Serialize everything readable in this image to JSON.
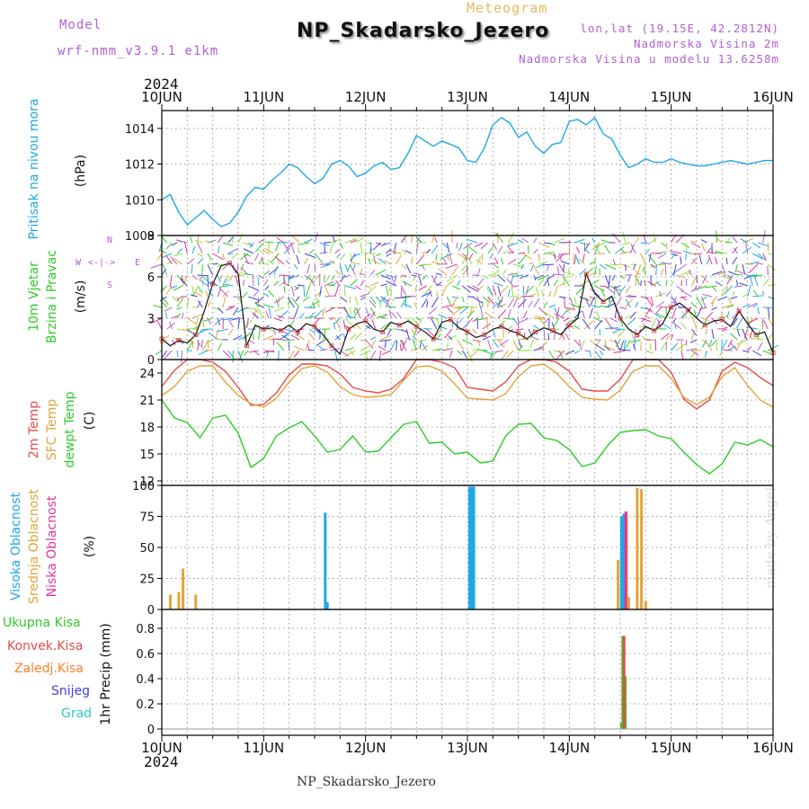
{
  "header": {
    "model_label": "Model",
    "model_value": "wrf-nmm_v3.9.1 e1km",
    "kind": "Meteogram",
    "station": "NP_Skadarsko_Jezero",
    "lonlat": "lon,lat (19.15E, 42.2812N)",
    "alt": "Nadmorska Visina 2m",
    "alt_model": "Nadmorska Visina u modelu 13.6258m"
  },
  "footer": {
    "station": "NP_Skadarsko_Jezero",
    "made_by": "made by Angel"
  },
  "years": {
    "top": "2024",
    "bottom": "2024"
  },
  "colors": {
    "pressure": "#1ea8e6",
    "t2m": "#e84a4a",
    "sfc": "#e2a43a",
    "dew": "#2ecc28",
    "high_cloud": "#1ea8e6",
    "mid_cloud": "#e2a43a",
    "low_cloud": "#e0359a",
    "total_precip": "#2ecc28",
    "conv_precip": "#e84a4a",
    "frozen_precip": "#ff7f27",
    "snow": "#4040d8",
    "hail": "#2ec8c8"
  },
  "panel_labels": {
    "pressure": {
      "name": "Pritisak na nivou mora",
      "unit": "(hPa)"
    },
    "wind": {
      "name1": "10m Vjetar",
      "name2": "Brzina i Pravac",
      "unit": "(m/s)",
      "compass_n": "N",
      "compass_s": "S",
      "compass_w": "W",
      "compass_e": "E"
    },
    "temp": {
      "name1": "2m Temp",
      "name2": "SFC Temp",
      "name3": "dewpt Temp",
      "unit": "(C)"
    },
    "cloud": {
      "name1": "Visoka Oblacnost",
      "name2": "Srednja Oblacnost",
      "name3": "Niska Oblacnost",
      "unit": "(%)"
    },
    "precip": {
      "unit": "1hr Precip (mm)",
      "legend": [
        "Ukupna Kisa",
        "Konvek.Kisa",
        "Zaledj.Kisa",
        "Snijeg",
        "Grad"
      ]
    }
  },
  "chart_data": [
    {
      "type": "line",
      "panel": "pressure",
      "x_ticks": [
        "10JUN",
        "11JUN",
        "12JUN",
        "13JUN",
        "14JUN",
        "15JUN",
        "16JUN"
      ],
      "xlim": [
        0,
        144
      ],
      "ylim": [
        1008,
        1015
      ],
      "y_ticks": [
        1008,
        1010,
        1012,
        1014
      ],
      "grid": true,
      "series": [
        {
          "name": "Pritisak na nivou mora",
          "color": "#1ea8e6",
          "x": [
            0,
            2,
            4,
            6,
            8,
            10,
            12,
            14,
            16,
            18,
            20,
            22,
            24,
            26,
            28,
            30,
            32,
            34,
            36,
            38,
            40,
            42,
            44,
            46,
            48,
            50,
            52,
            54,
            56,
            58,
            60,
            62,
            64,
            66,
            68,
            70,
            72,
            74,
            76,
            78,
            80,
            82,
            84,
            86,
            88,
            90,
            92,
            94,
            96,
            98,
            100,
            102,
            104,
            106,
            108,
            110,
            112,
            114,
            116,
            118,
            120,
            122,
            124,
            126,
            128,
            130,
            132,
            134,
            136,
            138,
            140,
            142,
            144
          ],
          "y": [
            1010.0,
            1010.3,
            1009.3,
            1008.6,
            1009.0,
            1009.4,
            1008.9,
            1008.5,
            1008.7,
            1009.3,
            1010.2,
            1010.7,
            1010.6,
            1011.1,
            1011.5,
            1012.0,
            1011.8,
            1011.3,
            1010.9,
            1011.2,
            1012.0,
            1012.2,
            1011.9,
            1011.3,
            1011.5,
            1011.9,
            1012.1,
            1011.7,
            1011.8,
            1012.6,
            1013.6,
            1013.3,
            1013.0,
            1013.3,
            1013.1,
            1012.9,
            1012.2,
            1012.1,
            1012.9,
            1014.2,
            1014.6,
            1014.3,
            1013.5,
            1013.8,
            1013.0,
            1012.6,
            1013.1,
            1013.2,
            1014.4,
            1014.5,
            1014.2,
            1014.6,
            1013.7,
            1013.4,
            1012.5,
            1011.8,
            1012.0,
            1012.3,
            1012.1,
            1012.1,
            1012.3,
            1012.1,
            1012.0,
            1011.9,
            1011.9,
            1012.0,
            1012.1,
            1012.2,
            1012.1,
            1012.0,
            1012.1,
            1012.2,
            1012.2
          ]
        }
      ]
    },
    {
      "type": "line",
      "panel": "wind",
      "xlim": [
        0,
        144
      ],
      "ylim": [
        0,
        9
      ],
      "y_ticks": [
        0,
        3,
        6,
        9
      ],
      "grid": true,
      "series": [
        {
          "name": "Brzina",
          "x": [
            0,
            2,
            4,
            6,
            8,
            10,
            12,
            14,
            16,
            18,
            20,
            22,
            24,
            26,
            28,
            30,
            32,
            34,
            36,
            38,
            40,
            42,
            44,
            46,
            48,
            50,
            52,
            54,
            56,
            58,
            60,
            62,
            64,
            66,
            68,
            70,
            72,
            74,
            76,
            78,
            80,
            82,
            84,
            86,
            88,
            90,
            92,
            94,
            96,
            98,
            100,
            102,
            104,
            106,
            108,
            110,
            112,
            114,
            116,
            118,
            120,
            122,
            124,
            126,
            128,
            130,
            132,
            134,
            136,
            138,
            140,
            142,
            144
          ],
          "y": [
            1.5,
            1.0,
            1.4,
            1.2,
            1.8,
            3.5,
            5.5,
            6.8,
            7.0,
            6.2,
            1.0,
            2.5,
            2.2,
            2.3,
            2.1,
            2.5,
            2.0,
            2.6,
            2.4,
            1.8,
            1.0,
            0.4,
            2.2,
            2.6,
            2.8,
            2.2,
            2.0,
            2.7,
            2.5,
            2.8,
            2.4,
            2.0,
            1.5,
            2.7,
            2.9,
            2.3,
            2.0,
            1.6,
            1.8,
            2.2,
            2.4,
            2.1,
            1.9,
            1.5,
            2.0,
            2.3,
            2.1,
            1.8,
            2.5,
            3.0,
            6.2,
            4.8,
            4.2,
            4.6,
            3.0,
            2.2,
            1.8,
            2.4,
            2.1,
            2.6,
            3.8,
            4.1,
            3.6,
            3.0,
            2.5,
            2.8,
            2.9,
            2.4,
            3.5,
            2.6,
            1.8,
            2.0,
            0.5
          ]
        }
      ]
    },
    {
      "type": "line",
      "panel": "temperature",
      "xlim": [
        0,
        144
      ],
      "ylim": [
        11.5,
        25.5
      ],
      "y_ticks": [
        12,
        15,
        18,
        21,
        24
      ],
      "grid": true,
      "series": [
        {
          "name": "2m Temp",
          "color": "#e84a4a",
          "x": [
            0,
            3,
            6,
            9,
            12,
            15,
            18,
            21,
            24,
            27,
            30,
            33,
            36,
            39,
            42,
            45,
            48,
            51,
            54,
            57,
            60,
            63,
            66,
            69,
            72,
            75,
            78,
            81,
            84,
            87,
            90,
            93,
            96,
            99,
            102,
            105,
            108,
            111,
            114,
            117,
            120,
            123,
            126,
            129,
            132,
            135,
            138,
            141,
            144
          ],
          "y": [
            22.5,
            24.3,
            25.5,
            25.5,
            25.2,
            24.2,
            22.4,
            20.4,
            20.5,
            21.8,
            23.8,
            25.0,
            25.0,
            24.8,
            23.9,
            22.4,
            22.0,
            21.8,
            22.2,
            23.4,
            25.5,
            25.5,
            25.2,
            24.6,
            22.4,
            22.2,
            22.0,
            23.0,
            24.8,
            25.5,
            25.5,
            25.2,
            24.2,
            22.2,
            22.0,
            22.0,
            23.3,
            25.5,
            25.5,
            25.5,
            24.1,
            21.1,
            20.0,
            21.0,
            24.2,
            25.2,
            24.6,
            23.5,
            22.6
          ]
        },
        {
          "name": "SFC Temp",
          "color": "#e2a43a",
          "x": [
            0,
            3,
            6,
            9,
            12,
            15,
            18,
            21,
            24,
            27,
            30,
            33,
            36,
            39,
            42,
            45,
            48,
            51,
            54,
            57,
            60,
            63,
            66,
            69,
            72,
            75,
            78,
            81,
            84,
            87,
            90,
            93,
            96,
            99,
            102,
            105,
            108,
            111,
            114,
            117,
            120,
            123,
            126,
            129,
            132,
            135,
            138,
            141,
            144
          ],
          "y": [
            21.5,
            22.5,
            24.2,
            24.8,
            24.8,
            23.0,
            21.5,
            20.6,
            20.2,
            21.2,
            23.0,
            24.5,
            24.8,
            24.1,
            22.5,
            21.6,
            21.3,
            21.4,
            21.6,
            23.2,
            24.7,
            24.8,
            24.2,
            22.8,
            21.2,
            21.1,
            21.0,
            21.7,
            23.6,
            24.8,
            25.0,
            24.0,
            22.5,
            21.3,
            21.1,
            21.0,
            22.1,
            24.2,
            24.8,
            24.8,
            23.4,
            21.3,
            20.5,
            21.3,
            23.6,
            24.6,
            22.6,
            21.0,
            20.2
          ]
        },
        {
          "name": "dewpt Temp",
          "color": "#2ecc28",
          "x": [
            0,
            3,
            6,
            9,
            12,
            15,
            18,
            21,
            24,
            27,
            30,
            33,
            36,
            39,
            42,
            45,
            48,
            51,
            54,
            57,
            60,
            63,
            66,
            69,
            72,
            75,
            78,
            81,
            84,
            87,
            90,
            93,
            96,
            99,
            102,
            105,
            108,
            111,
            114,
            117,
            120,
            123,
            126,
            129,
            132,
            135,
            138,
            141,
            144
          ],
          "y": [
            21.0,
            19.0,
            18.5,
            16.8,
            19.0,
            19.3,
            17.3,
            13.5,
            14.5,
            17.0,
            17.9,
            18.6,
            17.0,
            15.2,
            15.5,
            17.0,
            15.2,
            15.3,
            16.8,
            18.3,
            18.6,
            16.2,
            16.3,
            15.0,
            15.2,
            14.0,
            14.2,
            17.0,
            18.3,
            18.4,
            16.8,
            16.5,
            15.5,
            13.6,
            14.0,
            15.9,
            17.4,
            17.6,
            17.7,
            17.0,
            16.7,
            15.2,
            13.8,
            12.8,
            13.9,
            16.3,
            16.0,
            16.6,
            15.8
          ]
        }
      ]
    },
    {
      "type": "bar",
      "panel": "cloud",
      "xlim": [
        0,
        144
      ],
      "ylim": [
        0,
        100
      ],
      "y_ticks": [
        0,
        25,
        50,
        75,
        100
      ],
      "grid": true,
      "series": [
        {
          "name": "Visoka Oblacnost",
          "color": "#1ea8e6",
          "x": [
            38.5,
            39,
            72.5,
            73,
            73.5,
            108.3,
            108.8
          ],
          "values": [
            78,
            6,
            99,
            99,
            99,
            75,
            77
          ]
        },
        {
          "name": "Srednja Oblacnost",
          "color": "#e2a43a",
          "x": [
            2,
            4,
            5,
            8,
            107.5,
            109.5,
            110,
            112,
            113,
            114
          ],
          "values": [
            12,
            14,
            33,
            12,
            40,
            78,
            10,
            98,
            97,
            7
          ]
        },
        {
          "name": "Niska Oblacnost",
          "color": "#e0359a",
          "x": [
            109.3
          ],
          "values": [
            79
          ]
        }
      ]
    },
    {
      "type": "bar",
      "panel": "precip",
      "xlim": [
        0,
        144
      ],
      "ylim": [
        -0.05,
        0.95
      ],
      "y_ticks": [
        0,
        0.2,
        0.4,
        0.6,
        0.8
      ],
      "grid": true,
      "series": [
        {
          "name": "Ukupna Kisa",
          "color": "#2ecc28",
          "x": [
            108.3,
            108.6,
            109.2
          ],
          "values": [
            0.05,
            0.74,
            0.42
          ]
        },
        {
          "name": "Konvek.Kisa",
          "color": "#e84a4a",
          "x": [
            108.9
          ],
          "values": [
            0.74
          ]
        }
      ]
    }
  ]
}
